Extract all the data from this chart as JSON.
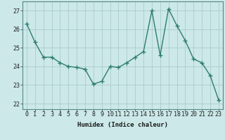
{
  "x": [
    0,
    1,
    2,
    3,
    4,
    5,
    6,
    7,
    8,
    9,
    10,
    11,
    12,
    13,
    14,
    15,
    16,
    17,
    18,
    19,
    20,
    21,
    22,
    23
  ],
  "y": [
    26.3,
    25.3,
    24.5,
    24.5,
    24.2,
    24.0,
    23.95,
    23.85,
    23.05,
    23.2,
    24.0,
    23.95,
    24.2,
    24.5,
    24.8,
    27.0,
    24.6,
    27.1,
    26.2,
    25.4,
    24.4,
    24.2,
    23.5,
    22.2
  ],
  "line_color": "#2e7d6e",
  "bg_color": "#cce8e8",
  "grid_color": "#aacccc",
  "xlabel": "Humidex (Indice chaleur)",
  "ylabel_ticks": [
    22,
    23,
    24,
    25,
    26,
    27
  ],
  "ylim": [
    21.7,
    27.5
  ],
  "xlim": [
    -0.5,
    23.5
  ],
  "marker": "+",
  "linewidth": 1.0,
  "markersize": 4,
  "markeredgewidth": 1.0,
  "xlabel_fontsize": 6.5,
  "tick_fontsize": 6.0
}
